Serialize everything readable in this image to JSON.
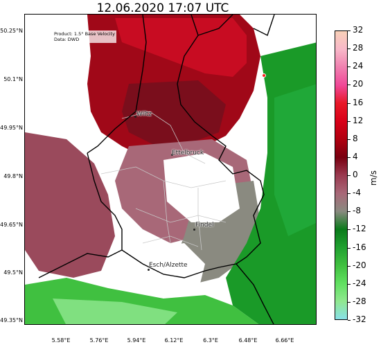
{
  "title": "12.06.2020 17:07 UTC",
  "product_label": "Product: 1.5° Base Velocity",
  "data_label": "Data: DWD",
  "lat_ticks": [
    "50.25°N",
    "50.1°N",
    "49.95°N",
    "49.8°N",
    "49.65°N",
    "49.5°N",
    "49.35°N"
  ],
  "lon_ticks": [
    "5.58°E",
    "5.76°E",
    "5.94°E",
    "6.12°E",
    "6.3°E",
    "6.48°E",
    "6.66°E"
  ],
  "colorbar": {
    "label": "m/s",
    "ticks": [
      "32",
      "28",
      "24",
      "20",
      "16",
      "12",
      "8",
      "4",
      "0",
      "-4",
      "-8",
      "-12",
      "-16",
      "-20",
      "-24",
      "-28",
      "-32"
    ],
    "colors": [
      "#f8d0b8",
      "#f8b8c8",
      "#f080b0",
      "#f04898",
      "#e81828",
      "#d80018",
      "#b00010",
      "#780010",
      "#9a3a50",
      "#a86878",
      "#8a8a80",
      "#0a7a1a",
      "#20a030",
      "#40c040",
      "#60e060",
      "#90e890",
      "#88e0e8"
    ]
  },
  "cities": [
    {
      "name": "Wiltz"
    },
    {
      "name": "Ettelbruck"
    },
    {
      "name": "Findel"
    },
    {
      "name": "Esch/Alzette"
    }
  ]
}
